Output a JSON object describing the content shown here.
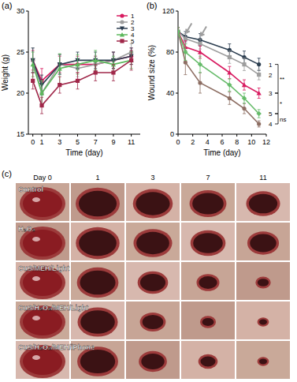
{
  "chart_data": [
    {
      "panel_label": "(a)",
      "type": "line",
      "x_label": "Time (day)",
      "y_label": "Weight (g)",
      "x": [
        0,
        1,
        3,
        5,
        7,
        9,
        11
      ],
      "xlim": [
        -0.5,
        12
      ],
      "xticks": [
        0,
        1,
        3,
        5,
        7,
        9,
        11
      ],
      "ylim": [
        15,
        30
      ],
      "yticks": [
        15,
        20,
        25,
        30
      ],
      "legend": "upper right",
      "series": [
        {
          "name": "1",
          "color": "#d81b60",
          "marker": "circle",
          "values": [
            24,
            21.5,
            23.5,
            23.5,
            23.5,
            24,
            24.5
          ],
          "errors": [
            1.2,
            1.5,
            1,
            1,
            1,
            1,
            1
          ]
        },
        {
          "name": "2",
          "color": "#9e9e9e",
          "marker": "circle",
          "values": [
            24,
            20,
            23.5,
            23,
            23.5,
            24,
            25
          ],
          "errors": [
            1.5,
            1.5,
            1.2,
            1,
            1,
            1,
            1
          ]
        },
        {
          "name": "3",
          "color": "#2c3e50",
          "marker": "triangle-down",
          "values": [
            24,
            21,
            23.5,
            24,
            24,
            24,
            24.5
          ],
          "errors": [
            1.5,
            1.2,
            1.2,
            1,
            1,
            1,
            1
          ]
        },
        {
          "name": "4",
          "color": "#5cb85c",
          "marker": "triangle",
          "values": [
            23.5,
            20,
            23,
            23.5,
            24,
            23.5,
            24
          ],
          "errors": [
            1.5,
            1.5,
            1.8,
            1.2,
            1.2,
            1,
            1
          ]
        },
        {
          "name": "5",
          "color": "#a0284a",
          "marker": "square",
          "values": [
            21.5,
            18.5,
            21,
            21.5,
            22.5,
            22.5,
            24
          ],
          "errors": [
            1,
            1,
            1,
            1,
            1,
            1,
            1.2
          ]
        }
      ]
    },
    {
      "panel_label": "(b)",
      "type": "line",
      "x_label": "Time (day)",
      "y_label": "Wound size (%)",
      "x": [
        0,
        1,
        3,
        7,
        9,
        11
      ],
      "xlim": [
        0,
        12
      ],
      "xticks": [
        0,
        2,
        4,
        6,
        8,
        10,
        12
      ],
      "ylim": [
        0,
        120
      ],
      "yticks": [
        0,
        40,
        80,
        120
      ],
      "arrow_x": [
        1,
        3
      ],
      "series": [
        {
          "name": "1",
          "color": "#2c3e50",
          "marker": "circle",
          "values": [
            100,
            95,
            92,
            82,
            75,
            68
          ],
          "errors": [
            4,
            5,
            6,
            6,
            6,
            6
          ]
        },
        {
          "name": "2",
          "color": "#9e9e9e",
          "marker": "square",
          "values": [
            100,
            93,
            88,
            75,
            68,
            58
          ],
          "errors": [
            4,
            5,
            5,
            6,
            6,
            5
          ]
        },
        {
          "name": "3",
          "color": "#d81b60",
          "marker": "triangle",
          "values": [
            100,
            85,
            80,
            60,
            48,
            40
          ],
          "errors": [
            4,
            6,
            6,
            6,
            5,
            5
          ]
        },
        {
          "name": "4",
          "color": "#8d6e63",
          "marker": "circle",
          "values": [
            100,
            70,
            50,
            35,
            25,
            10
          ],
          "errors": [
            4,
            12,
            10,
            6,
            5,
            3
          ]
        },
        {
          "name": "5",
          "color": "#66bb6a",
          "marker": "diamond",
          "values": [
            100,
            80,
            68,
            48,
            35,
            20
          ],
          "errors": [
            4,
            8,
            8,
            6,
            5,
            4
          ]
        }
      ],
      "annotations": [
        {
          "text": "**",
          "between": [
            "1",
            "3"
          ]
        },
        {
          "text": "*",
          "between": [
            "3",
            "5"
          ]
        },
        {
          "text": "ns",
          "between": [
            "5",
            "4"
          ]
        }
      ]
    }
  ],
  "photo_grid": {
    "panel_label": "(c)",
    "columns": [
      "Day 0",
      "1",
      "3",
      "7",
      "11"
    ],
    "rows": [
      "Control",
      "H₂O₂",
      "CuS/MEH/Light",
      "CuS/H₂O₂/MEH/Light",
      "CuS/H₂O₂/MEH/iPhone"
    ]
  }
}
